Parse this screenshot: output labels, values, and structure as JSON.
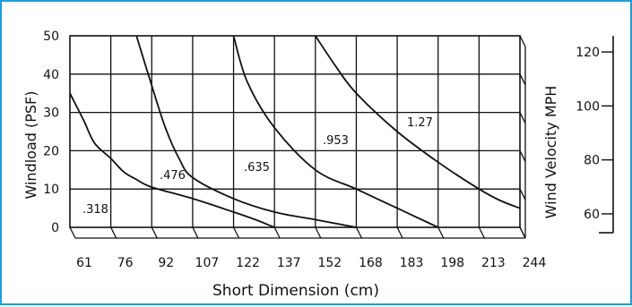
{
  "chart_data": {
    "type": "line",
    "xlabel": "Short Dimension (cm)",
    "ylabel": "Windload (PSF)",
    "y2label": "Wind Velocity MPH",
    "x_ticks": [
      "61",
      "76",
      "92",
      "107",
      "122",
      "137",
      "152",
      "168",
      "183",
      "198",
      "213",
      "244"
    ],
    "y_ticks": [
      0,
      10,
      20,
      30,
      40,
      50
    ],
    "y_tick_labels": [
      "0",
      "10",
      "20",
      "30",
      "40",
      "50"
    ],
    "ylim": [
      0,
      50
    ],
    "grid": true,
    "y2_ticks": [
      {
        "value": 120,
        "label": "120"
      },
      {
        "value": 100,
        "label": "100"
      },
      {
        "value": 80,
        "label": "80"
      },
      {
        "value": 60,
        "label": "60"
      }
    ],
    "series": [
      {
        "name": ".318",
        "x": [
          61,
          66,
          70,
          76,
          81,
          86,
          92,
          107,
          122,
          130,
          137
        ],
        "y": [
          35,
          28,
          22,
          18,
          14.5,
          12.5,
          10.5,
          7.5,
          4,
          2,
          0
        ]
      },
      {
        "name": ".476",
        "x": [
          86,
          92,
          97,
          102,
          107,
          122,
          137,
          152,
          168
        ],
        "y": [
          50,
          37,
          26,
          18,
          13,
          7.5,
          4,
          2,
          0
        ]
      },
      {
        "name": ".635",
        "x": [
          122,
          127,
          137,
          152,
          168,
          183,
          198
        ],
        "y": [
          50,
          38,
          26,
          15,
          10,
          5,
          0
        ]
      },
      {
        "name": ".953",
        "x": [
          152,
          160,
          168,
          183,
          198,
          213,
          229,
          244
        ],
        "y": [
          50,
          42,
          35,
          25,
          17,
          10,
          7,
          5
        ]
      }
    ]
  },
  "annotations": [
    {
      "text": ".318"
    },
    {
      "text": ".476"
    },
    {
      "text": ".635"
    },
    {
      "text": ".953"
    },
    {
      "text": "1.27"
    }
  ]
}
